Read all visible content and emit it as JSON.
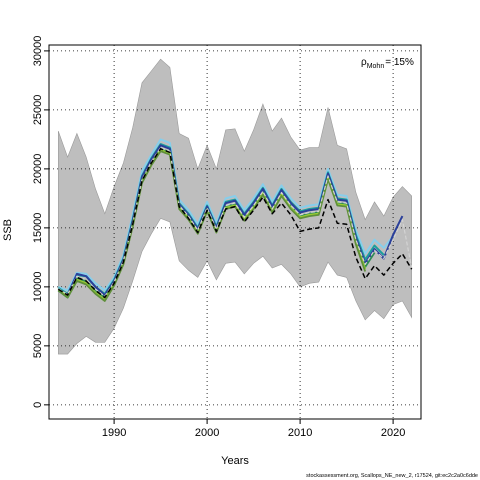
{
  "chart_data": {
    "type": "line",
    "title": "",
    "xlabel": "Years",
    "ylabel": "SSB",
    "xlim": [
      1983,
      2023
    ],
    "ylim": [
      -1200,
      30500
    ],
    "x_ticks": [
      1990,
      2000,
      2010,
      2020
    ],
    "y_ticks": [
      0,
      5000,
      10000,
      15000,
      20000,
      25000,
      30000
    ],
    "grid": true,
    "annotation": {
      "rho": "ρ",
      "sub": "Mohn",
      "value": "= 15%"
    },
    "source_text": "stockassessment.org, Scallops_NE_new_2, r17524, git:ec2c2a0c6dde",
    "band": {
      "color": "#bebebe",
      "x": [
        1984,
        1985,
        1986,
        1987,
        1988,
        1989,
        1990,
        1991,
        1992,
        1993,
        1994,
        1995,
        1996,
        1997,
        1998,
        1999,
        2000,
        2001,
        2002,
        2003,
        2004,
        2005,
        2006,
        2007,
        2008,
        2009,
        2010,
        2011,
        2012,
        2013,
        2014,
        2015,
        2016,
        2017,
        2018,
        2019,
        2020,
        2021,
        2022
      ],
      "upper": [
        23200,
        21000,
        23000,
        21000,
        18300,
        16200,
        18500,
        20500,
        23500,
        27300,
        28300,
        29300,
        28600,
        23000,
        22600,
        20000,
        22000,
        20000,
        23300,
        23400,
        21500,
        23300,
        25500,
        23200,
        24300,
        22700,
        21600,
        21800,
        21800,
        25200,
        22000,
        21700,
        18000,
        15700,
        17200,
        16000,
        17600,
        18500,
        17700
      ],
      "lower": [
        4300,
        4300,
        5200,
        5800,
        5300,
        5300,
        6500,
        8200,
        10500,
        13000,
        14500,
        15800,
        15500,
        12200,
        11400,
        10800,
        12200,
        10600,
        12000,
        12100,
        11100,
        12000,
        12600,
        11600,
        11900,
        11100,
        10000,
        10300,
        10400,
        12100,
        11000,
        10800,
        8800,
        7200,
        8000,
        7300,
        8500,
        8800,
        7400
      ]
    },
    "series": [
      {
        "color": "#87ceeb",
        "width": 2.0,
        "dash": "",
        "x": [
          1984,
          1985,
          1986,
          1987,
          1988,
          1989,
          1990,
          1991,
          1992,
          1993,
          1994,
          1995,
          1996,
          1997,
          1998,
          1999,
          2000,
          2001,
          2002,
          2003,
          2004,
          2005,
          2006,
          2007,
          2008,
          2009,
          2010,
          2011,
          2012,
          2013,
          2014,
          2015,
          2016,
          2017,
          2018,
          2019,
          2020
        ],
        "values": [
          10000,
          9700,
          11200,
          11100,
          10300,
          9700,
          10800,
          12700,
          16100,
          19800,
          21200,
          22500,
          22200,
          17400,
          16500,
          15300,
          17200,
          15400,
          17500,
          17700,
          16500,
          17500,
          18700,
          17200,
          18600,
          17500,
          16700,
          16900,
          17000,
          20000,
          17800,
          17700,
          14800,
          12800,
          14000,
          13300,
          14300
        ]
      },
      {
        "color": "#1b9e9e",
        "width": 2.0,
        "dash": "",
        "x": [
          1984,
          1985,
          1986,
          1987,
          1988,
          1989,
          1990,
          1991,
          1992,
          1993,
          1994,
          1995,
          1996,
          1997,
          1998,
          1999,
          2000,
          2001,
          2002,
          2003,
          2004,
          2005,
          2006,
          2007,
          2008,
          2009,
          2010,
          2011,
          2012,
          2013,
          2014,
          2015,
          2016,
          2017,
          2018,
          2019
        ],
        "values": [
          9900,
          9400,
          11000,
          10900,
          10000,
          9400,
          10600,
          12400,
          15700,
          19400,
          20900,
          22100,
          21800,
          17100,
          16200,
          15000,
          16900,
          15100,
          17200,
          17400,
          16200,
          17200,
          18400,
          16900,
          18300,
          17200,
          16400,
          16600,
          16700,
          19700,
          17500,
          17400,
          14400,
          12300,
          13500,
          12700
        ]
      },
      {
        "color": "#2a3f9a",
        "width": 2.0,
        "dash": "",
        "x": [
          1984,
          1985,
          1986,
          1987,
          1988,
          1989,
          1990,
          1991,
          1992,
          1993,
          1994,
          1995,
          1996,
          1997,
          1998,
          1999,
          2000,
          2001,
          2002,
          2003,
          2004,
          2005,
          2006,
          2007,
          2008,
          2009,
          2010,
          2011,
          2012,
          2013,
          2014,
          2015,
          2016,
          2017,
          2018,
          2019,
          2020,
          2021
        ],
        "values": [
          9800,
          9300,
          11100,
          10900,
          10000,
          9300,
          10500,
          12300,
          15600,
          19300,
          20800,
          22000,
          21700,
          17000,
          16100,
          14900,
          16800,
          15000,
          17100,
          17300,
          16100,
          17100,
          18300,
          16800,
          18200,
          17100,
          16300,
          16500,
          16600,
          19600,
          17400,
          17300,
          14200,
          12000,
          13200,
          12400,
          14400,
          16000
        ]
      },
      {
        "color": "#2e8b57",
        "width": 2.0,
        "dash": "",
        "x": [
          1984,
          1985,
          1986,
          1987,
          1988,
          1989,
          1990,
          1991,
          1992,
          1993,
          1994,
          1995,
          1996,
          1997,
          1998,
          1999,
          2000,
          2001,
          2002,
          2003,
          2004,
          2005,
          2006,
          2007,
          2008,
          2009,
          2010,
          2011,
          2012,
          2013,
          2014,
          2015,
          2016,
          2017,
          2018
        ],
        "values": [
          9700,
          9100,
          10700,
          10500,
          9700,
          9100,
          10300,
          12100,
          15300,
          19000,
          20500,
          21700,
          21400,
          16800,
          15900,
          14700,
          16600,
          14800,
          16800,
          17000,
          15800,
          16800,
          18000,
          16500,
          17900,
          16800,
          16000,
          16200,
          16300,
          19300,
          17100,
          17000,
          13900,
          11700,
          12900
        ]
      },
      {
        "color": "#9acd32",
        "width": 2.0,
        "dash": "",
        "x": [
          1984,
          1985,
          1986,
          1987,
          1988,
          1989,
          1990,
          1991,
          1992,
          1993,
          1994,
          1995,
          1996,
          1997,
          1998,
          1999,
          2000,
          2001,
          2002,
          2003,
          2004,
          2005,
          2006,
          2007,
          2008,
          2009,
          2010,
          2011,
          2012,
          2013,
          2014,
          2015,
          2016,
          2017
        ],
        "values": [
          9800,
          9200,
          10600,
          10300,
          9500,
          8900,
          10200,
          12000,
          15200,
          18900,
          20400,
          21600,
          21300,
          16700,
          15800,
          14600,
          16500,
          14700,
          16700,
          16900,
          15700,
          16700,
          17900,
          16400,
          17800,
          16700,
          15900,
          16100,
          16200,
          19200,
          17000,
          16900,
          13700,
          11500
        ]
      },
      {
        "color": "#5f8f3a",
        "width": 1.8,
        "dash": "",
        "x": [
          1984,
          1985,
          1986,
          1987,
          1988,
          1989,
          1990,
          1991,
          1992,
          1993,
          1994,
          1995,
          1996,
          1997,
          1998,
          1999,
          2000,
          2001,
          2002,
          2003,
          2004,
          2005,
          2006,
          2007,
          2008,
          2009,
          2010,
          2011,
          2012,
          2013,
          2014,
          2015,
          2016,
          2017
        ],
        "values": [
          9700,
          9100,
          10500,
          10200,
          9400,
          8800,
          10100,
          11900,
          15100,
          18800,
          20300,
          21500,
          21200,
          16600,
          15700,
          14500,
          16400,
          14600,
          16600,
          16800,
          15600,
          16600,
          17800,
          16300,
          17700,
          16600,
          15800,
          16000,
          16100,
          19100,
          16900,
          16800,
          13600,
          11300
        ]
      },
      {
        "color": "#d3d3d3",
        "width": 1.2,
        "dash": "4,2",
        "x": [
          1984,
          1985,
          1986,
          1987,
          1988,
          1989,
          1990,
          1991,
          1992,
          1993,
          1994,
          1995,
          1996,
          1997,
          1998,
          1999,
          2000,
          2001,
          2002,
          2003,
          2004,
          2005,
          2006,
          2007,
          2008,
          2009,
          2010,
          2011,
          2012,
          2013,
          2014,
          2015,
          2016,
          2017,
          2018,
          2019,
          2020,
          2021,
          2022
        ],
        "values": [
          9850,
          9350,
          10900,
          10600,
          9800,
          9200,
          10400,
          12200,
          15400,
          19100,
          20600,
          21800,
          21500,
          16900,
          16000,
          14800,
          16700,
          14900,
          16900,
          17100,
          15900,
          16900,
          18100,
          16600,
          18000,
          16900,
          16100,
          16300,
          16400,
          19400,
          17200,
          17100,
          14000,
          11900,
          13100,
          12400,
          14000,
          15700,
          11600
        ]
      },
      {
        "color": "#000000",
        "width": 1.5,
        "dash": "5,3",
        "x": [
          1984,
          1985,
          1986,
          1987,
          1988,
          1989,
          1990,
          1991,
          1992,
          1993,
          1994,
          1995,
          1996,
          1997,
          1998,
          1999,
          2000,
          2001,
          2002,
          2003,
          2004,
          2005,
          2006,
          2007,
          2008,
          2009,
          2010,
          2011,
          2012,
          2013,
          2014,
          2015,
          2016,
          2017,
          2018,
          2019,
          2020,
          2021,
          2022
        ],
        "values": [
          9800,
          9300,
          10800,
          10500,
          9700,
          9100,
          10300,
          12100,
          15300,
          19000,
          20500,
          21700,
          21400,
          16800,
          15800,
          14600,
          16500,
          14700,
          16600,
          16800,
          15500,
          16500,
          17600,
          16200,
          17100,
          16100,
          14700,
          14900,
          15000,
          17400,
          15400,
          15300,
          12500,
          10700,
          11800,
          11000,
          12000,
          12800,
          11500
        ]
      }
    ]
  }
}
